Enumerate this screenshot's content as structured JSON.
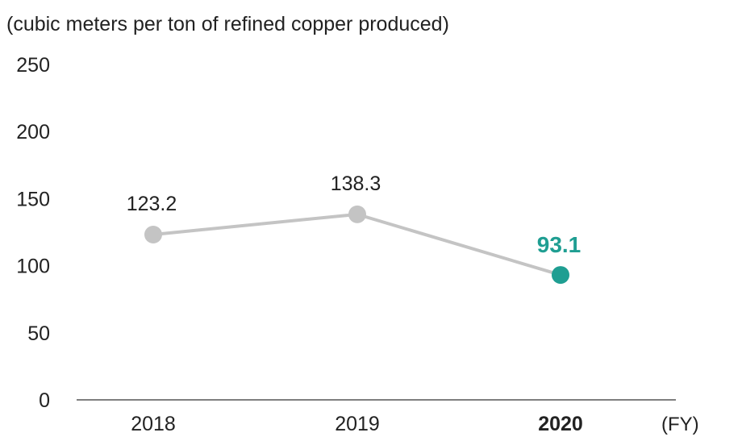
{
  "chart_data": {
    "type": "line",
    "unit_label": "(cubic meters per ton of refined copper produced)",
    "xlabel": "(FY)",
    "ylabel": "",
    "categories": [
      "2018",
      "2019",
      "2020"
    ],
    "highlight_category": "2020",
    "ylim": [
      0,
      250
    ],
    "yticks": [
      "0",
      "50",
      "100",
      "150",
      "200",
      "250"
    ],
    "series": [
      {
        "values": [
          123.2,
          138.3,
          93.1
        ],
        "labels": [
          "123.2",
          "138.3",
          "93.1"
        ]
      }
    ],
    "grid": false,
    "colors": {
      "line": "#c4c4c4",
      "point": "#c4c4c4",
      "highlight": "#1f9e92",
      "axis": "#555555",
      "text": "#222222"
    }
  }
}
